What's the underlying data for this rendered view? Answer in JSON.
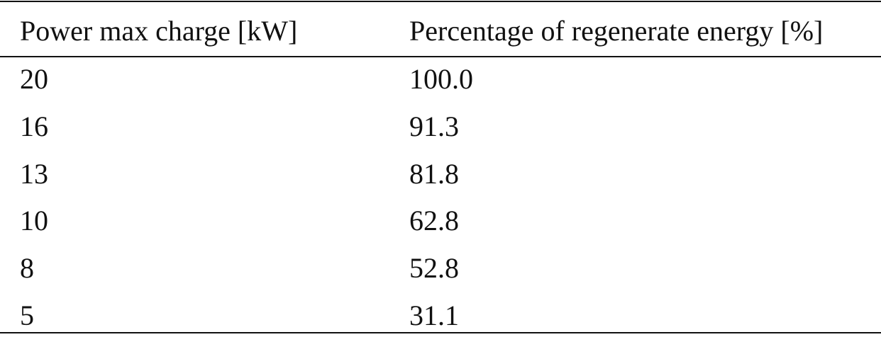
{
  "table": {
    "header": [
      "Power max charge [kW]",
      "Percentage of regenerate energy [%]"
    ],
    "rows": [
      [
        "20",
        "100.0"
      ],
      [
        "16",
        "91.3"
      ],
      [
        "13",
        "81.8"
      ],
      [
        "10",
        "62.8"
      ],
      [
        "8",
        "52.8"
      ],
      [
        "5",
        "31.1"
      ]
    ]
  }
}
